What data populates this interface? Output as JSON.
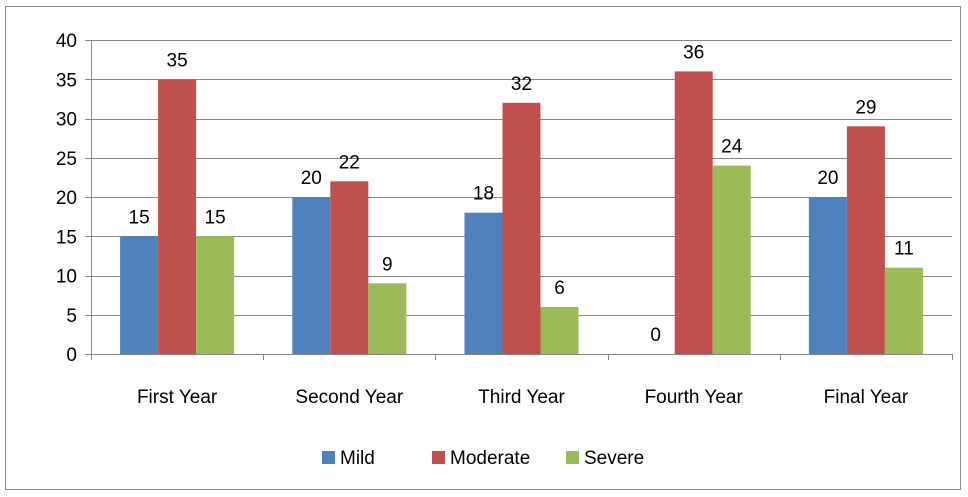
{
  "chart_data": {
    "type": "bar",
    "categories": [
      "First Year",
      "Second Year",
      "Third Year",
      "Fourth Year",
      "Final Year"
    ],
    "series": [
      {
        "name": "Mild",
        "values": [
          15,
          20,
          18,
          0,
          20
        ],
        "color": "#4f81bd"
      },
      {
        "name": "Moderate",
        "values": [
          35,
          22,
          32,
          36,
          29
        ],
        "color": "#c0504d"
      },
      {
        "name": "Severe",
        "values": [
          15,
          9,
          6,
          24,
          11
        ],
        "color": "#9bbb59"
      }
    ],
    "ylim": [
      0,
      40
    ],
    "yticks": [
      0,
      5,
      10,
      15,
      20,
      25,
      30,
      35,
      40
    ],
    "grid": true,
    "legend_position": "bottom",
    "data_labels": true
  }
}
